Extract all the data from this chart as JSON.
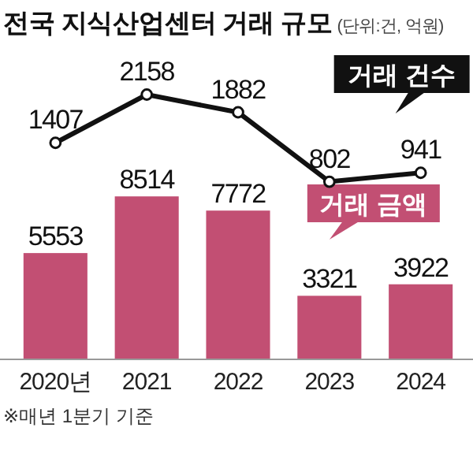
{
  "chart_data": [
    {
      "type": "line",
      "title": "전국 지식산업센터 거래 규모",
      "subtitle": "(단위:건, 억원)",
      "categories": [
        null,
        null,
        null,
        null,
        null
      ],
      "series": [
        {
          "name": "거래 건수",
          "color": "#111111",
          "values": [
            1407,
            2158,
            1882,
            802,
            941
          ]
        }
      ],
      "data_labels": true,
      "marker": "circle"
    },
    {
      "type": "bar",
      "categories": [
        "2020년",
        "2021",
        "2022",
        "2023",
        "2024"
      ],
      "series": [
        {
          "name": "거래 금액",
          "color": "#c24f73",
          "values": [
            5553,
            8514,
            7772,
            3321,
            3922
          ]
        }
      ],
      "data_labels": true,
      "annotations": [
        "※매년 1분기 기준"
      ]
    }
  ]
}
